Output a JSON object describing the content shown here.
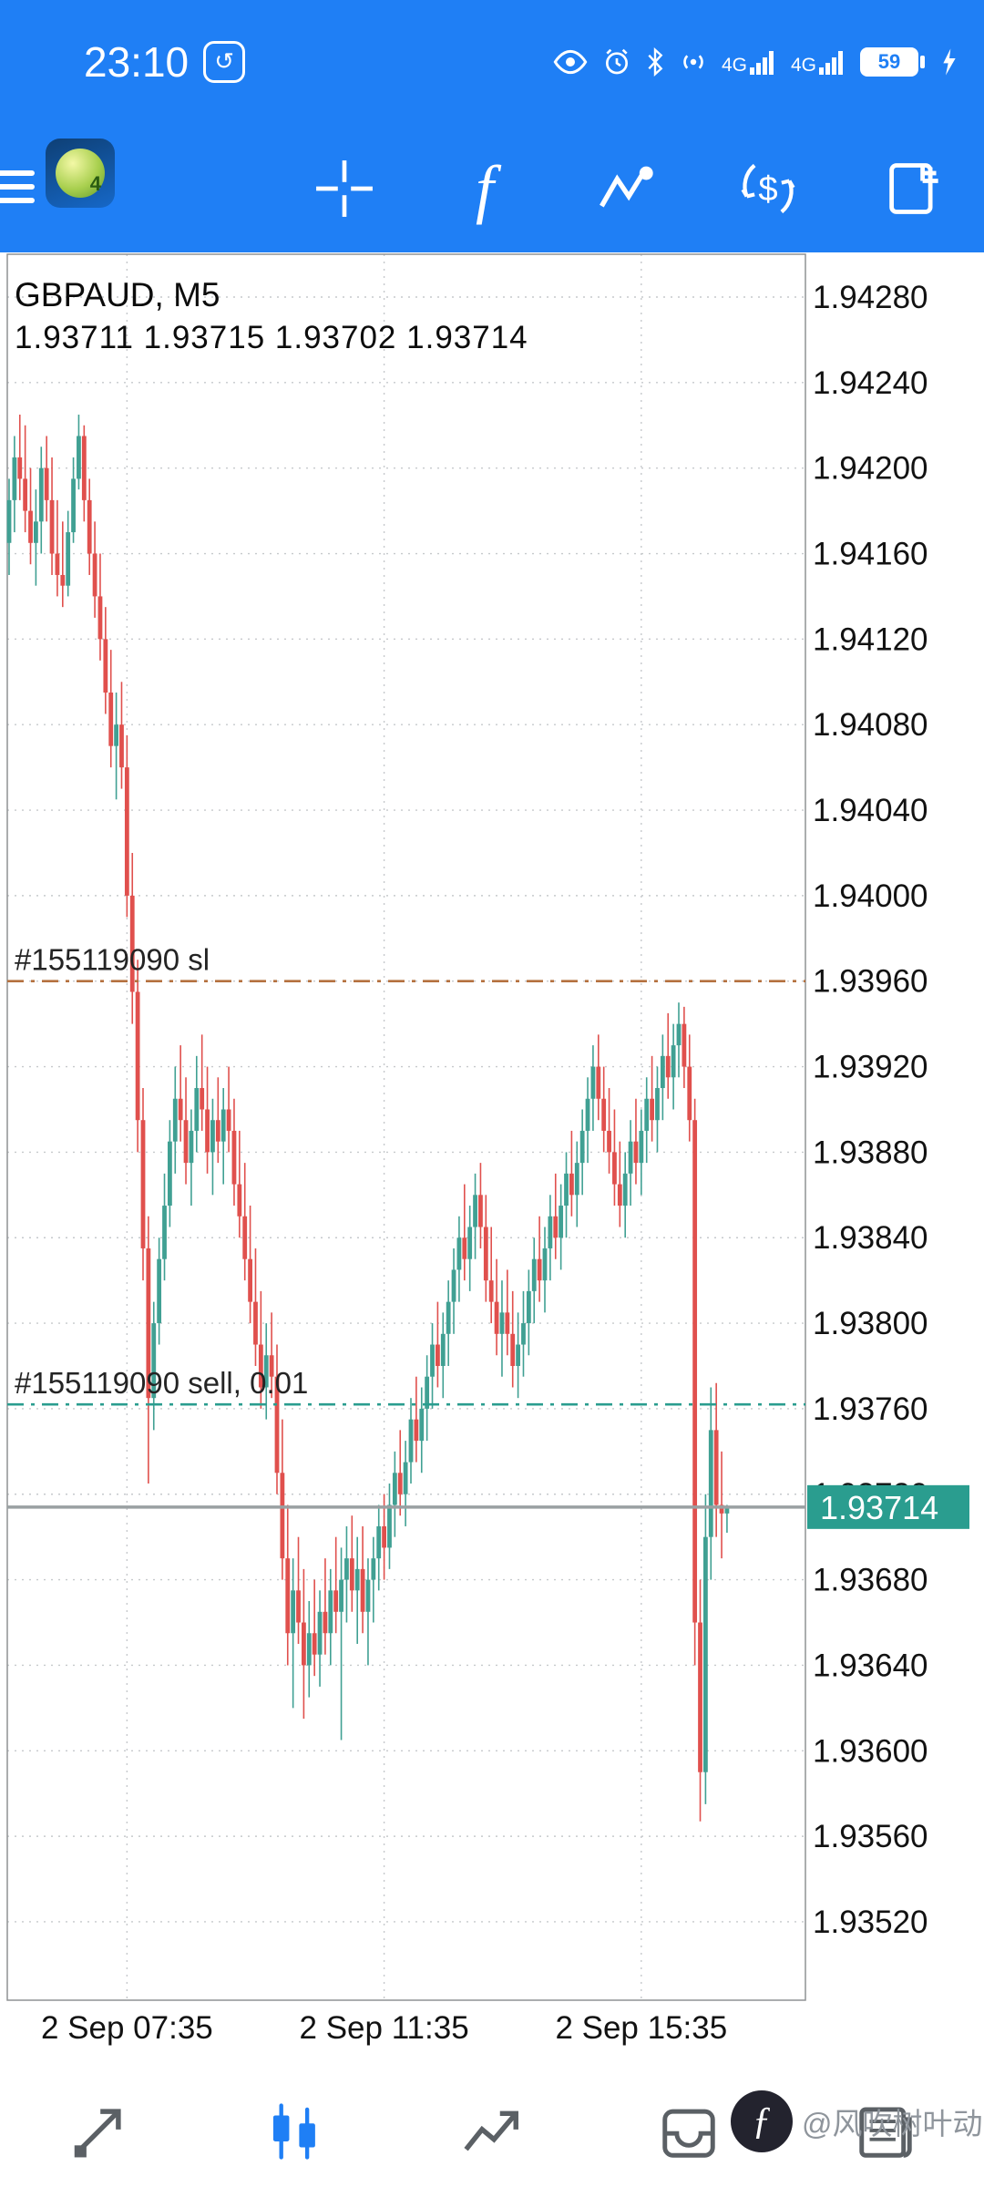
{
  "status_bar": {
    "time": "23:10",
    "battery_percent": "59",
    "sim1_network": "4G",
    "sim2_network": "4G"
  },
  "toolbar": {
    "icons": [
      "menu",
      "mt4-logo",
      "crosshair",
      "indicator-f",
      "objects",
      "trade-dollar",
      "new-order"
    ]
  },
  "chart": {
    "symbol_line": "GBPAUD, M5",
    "ohlc_line": "1.93711 1.93715 1.93702 1.93714",
    "orders": [
      {
        "label": "#155119090 sl",
        "price": 1.9396,
        "color": "#b5713f"
      },
      {
        "label": "#155119090 sell, 0.01",
        "price": 1.93762,
        "color": "#2a9d8f"
      }
    ]
  },
  "chart_data": {
    "type": "candlestick",
    "symbol": "GBPAUD",
    "timeframe": "M5",
    "title": "GBPAUD, M5",
    "y_max": 1.9428,
    "y_min": 1.9352,
    "y_step": 0.0004,
    "price_axis_labels": [
      "1.94280",
      "1.94240",
      "1.94200",
      "1.94160",
      "1.94120",
      "1.94080",
      "1.94040",
      "1.94000",
      "1.93960",
      "1.93920",
      "1.93880",
      "1.93840",
      "1.93800",
      "1.93760",
      "1.93720",
      "1.93680",
      "1.93640",
      "1.93600",
      "1.93560",
      "1.93520"
    ],
    "x_labels": [
      {
        "label": "2 Sep 07:35",
        "index": 22
      },
      {
        "label": "2 Sep 11:35",
        "index": 70
      },
      {
        "label": "2 Sep 15:35",
        "index": 118
      }
    ],
    "current_price": 1.93714,
    "current_price_label": "1.93714",
    "bull_color": "#40a093",
    "bear_color": "#e0504d",
    "candles": [
      [
        1.94165,
        1.94195,
        1.9415,
        1.94185
      ],
      [
        1.94185,
        1.94215,
        1.9417,
        1.94205
      ],
      [
        1.94205,
        1.94225,
        1.94185,
        1.94195
      ],
      [
        1.94195,
        1.9422,
        1.9417,
        1.9418
      ],
      [
        1.9418,
        1.942,
        1.94155,
        1.94165
      ],
      [
        1.94165,
        1.9419,
        1.94145,
        1.94175
      ],
      [
        1.94175,
        1.9421,
        1.9416,
        1.942
      ],
      [
        1.942,
        1.94215,
        1.94175,
        1.94185
      ],
      [
        1.94185,
        1.94205,
        1.9415,
        1.9416
      ],
      [
        1.9416,
        1.94185,
        1.9414,
        1.9415
      ],
      [
        1.9415,
        1.94175,
        1.94135,
        1.94145
      ],
      [
        1.94145,
        1.9418,
        1.9414,
        1.9417
      ],
      [
        1.9417,
        1.94205,
        1.94165,
        1.94195
      ],
      [
        1.94195,
        1.94225,
        1.9419,
        1.94215
      ],
      [
        1.94215,
        1.9422,
        1.94175,
        1.94185
      ],
      [
        1.94185,
        1.94195,
        1.9415,
        1.9416
      ],
      [
        1.9416,
        1.94175,
        1.9413,
        1.9414
      ],
      [
        1.9414,
        1.9416,
        1.9411,
        1.9412
      ],
      [
        1.9412,
        1.94135,
        1.94085,
        1.94095
      ],
      [
        1.94095,
        1.94115,
        1.9406,
        1.9407
      ],
      [
        1.9407,
        1.94095,
        1.94045,
        1.9408
      ],
      [
        1.9408,
        1.941,
        1.9405,
        1.9406
      ],
      [
        1.9406,
        1.94075,
        1.9399,
        1.94
      ],
      [
        1.94,
        1.9402,
        1.9394,
        1.93955
      ],
      [
        1.93955,
        1.9397,
        1.9388,
        1.93895
      ],
      [
        1.93895,
        1.9391,
        1.9382,
        1.93835
      ],
      [
        1.93835,
        1.9385,
        1.93725,
        1.93765
      ],
      [
        1.93765,
        1.9381,
        1.9375,
        1.938
      ],
      [
        1.938,
        1.9384,
        1.9379,
        1.9383
      ],
      [
        1.9383,
        1.9387,
        1.9382,
        1.93855
      ],
      [
        1.93855,
        1.93895,
        1.93845,
        1.93885
      ],
      [
        1.93885,
        1.9392,
        1.9387,
        1.93905
      ],
      [
        1.93905,
        1.9393,
        1.93885,
        1.93895
      ],
      [
        1.93895,
        1.93915,
        1.93865,
        1.93875
      ],
      [
        1.93875,
        1.939,
        1.93855,
        1.9389
      ],
      [
        1.9389,
        1.93925,
        1.9388,
        1.9391
      ],
      [
        1.9391,
        1.93935,
        1.9389,
        1.939
      ],
      [
        1.939,
        1.9392,
        1.9387,
        1.9388
      ],
      [
        1.9388,
        1.93905,
        1.9386,
        1.93895
      ],
      [
        1.93895,
        1.93915,
        1.93875,
        1.93885
      ],
      [
        1.93885,
        1.9391,
        1.93865,
        1.939
      ],
      [
        1.939,
        1.9392,
        1.9388,
        1.9389
      ],
      [
        1.9389,
        1.93905,
        1.93855,
        1.93865
      ],
      [
        1.93865,
        1.9389,
        1.9384,
        1.9385
      ],
      [
        1.9385,
        1.93875,
        1.9382,
        1.9383
      ],
      [
        1.9383,
        1.93855,
        1.938,
        1.9381
      ],
      [
        1.9381,
        1.93835,
        1.9378,
        1.9379
      ],
      [
        1.9379,
        1.93815,
        1.9376,
        1.9377
      ],
      [
        1.9377,
        1.938,
        1.93755,
        1.93785
      ],
      [
        1.93785,
        1.93805,
        1.93765,
        1.93775
      ],
      [
        1.93775,
        1.9379,
        1.9372,
        1.9373
      ],
      [
        1.9373,
        1.93755,
        1.9368,
        1.9369
      ],
      [
        1.9369,
        1.93715,
        1.9364,
        1.93655
      ],
      [
        1.93655,
        1.9369,
        1.9362,
        1.93675
      ],
      [
        1.93675,
        1.937,
        1.9365,
        1.9366
      ],
      [
        1.9366,
        1.93685,
        1.93615,
        1.9364
      ],
      [
        1.9364,
        1.9367,
        1.93625,
        1.93655
      ],
      [
        1.93655,
        1.9368,
        1.93635,
        1.93645
      ],
      [
        1.93645,
        1.93675,
        1.9363,
        1.93665
      ],
      [
        1.93665,
        1.9369,
        1.93645,
        1.93655
      ],
      [
        1.93655,
        1.93685,
        1.9364,
        1.93675
      ],
      [
        1.93675,
        1.937,
        1.93655,
        1.93665
      ],
      [
        1.93665,
        1.93695,
        1.93605,
        1.9368
      ],
      [
        1.9368,
        1.93705,
        1.9366,
        1.9369
      ],
      [
        1.9369,
        1.9371,
        1.93665,
        1.93675
      ],
      [
        1.93675,
        1.937,
        1.9365,
        1.93685
      ],
      [
        1.93685,
        1.93705,
        1.93655,
        1.93665
      ],
      [
        1.93665,
        1.9369,
        1.9364,
        1.9368
      ],
      [
        1.9368,
        1.937,
        1.9366,
        1.9369
      ],
      [
        1.9369,
        1.93715,
        1.93675,
        1.93705
      ],
      [
        1.93705,
        1.9372,
        1.9368,
        1.93695
      ],
      [
        1.93695,
        1.93725,
        1.93685,
        1.93715
      ],
      [
        1.93715,
        1.9374,
        1.937,
        1.9373
      ],
      [
        1.9373,
        1.9375,
        1.9371,
        1.9372
      ],
      [
        1.9372,
        1.93745,
        1.93705,
        1.93735
      ],
      [
        1.93735,
        1.93765,
        1.93725,
        1.93755
      ],
      [
        1.93755,
        1.93775,
        1.93735,
        1.93745
      ],
      [
        1.93745,
        1.9377,
        1.9373,
        1.9376
      ],
      [
        1.9376,
        1.93785,
        1.93745,
        1.93775
      ],
      [
        1.93775,
        1.938,
        1.9376,
        1.9379
      ],
      [
        1.9379,
        1.9381,
        1.9377,
        1.9378
      ],
      [
        1.9378,
        1.93805,
        1.93765,
        1.93795
      ],
      [
        1.93795,
        1.9382,
        1.9378,
        1.9381
      ],
      [
        1.9381,
        1.93835,
        1.93795,
        1.93825
      ],
      [
        1.93825,
        1.9385,
        1.9381,
        1.9384
      ],
      [
        1.9384,
        1.93865,
        1.9382,
        1.9383
      ],
      [
        1.9383,
        1.93855,
        1.93815,
        1.93845
      ],
      [
        1.93845,
        1.9387,
        1.9383,
        1.9386
      ],
      [
        1.9386,
        1.93875,
        1.93835,
        1.93845
      ],
      [
        1.93845,
        1.9386,
        1.9381,
        1.9382
      ],
      [
        1.9382,
        1.93845,
        1.938,
        1.9381
      ],
      [
        1.9381,
        1.9383,
        1.93785,
        1.93795
      ],
      [
        1.93795,
        1.9382,
        1.93775,
        1.93805
      ],
      [
        1.93805,
        1.93825,
        1.93785,
        1.93795
      ],
      [
        1.93795,
        1.93815,
        1.9377,
        1.9378
      ],
      [
        1.9378,
        1.93805,
        1.93765,
        1.9379
      ],
      [
        1.9379,
        1.93815,
        1.93775,
        1.938
      ],
      [
        1.938,
        1.93825,
        1.93785,
        1.93815
      ],
      [
        1.93815,
        1.9384,
        1.938,
        1.9383
      ],
      [
        1.9383,
        1.9385,
        1.9381,
        1.9382
      ],
      [
        1.9382,
        1.93845,
        1.93805,
        1.93835
      ],
      [
        1.93835,
        1.9386,
        1.9382,
        1.9385
      ],
      [
        1.9385,
        1.9387,
        1.9383,
        1.9384
      ],
      [
        1.9384,
        1.93865,
        1.93825,
        1.93855
      ],
      [
        1.93855,
        1.9388,
        1.9384,
        1.9387
      ],
      [
        1.9387,
        1.9389,
        1.9385,
        1.9386
      ],
      [
        1.9386,
        1.93885,
        1.93845,
        1.93875
      ],
      [
        1.93875,
        1.939,
        1.9386,
        1.9389
      ],
      [
        1.9389,
        1.93915,
        1.93875,
        1.93905
      ],
      [
        1.93905,
        1.9393,
        1.9389,
        1.9392
      ],
      [
        1.9392,
        1.93935,
        1.93895,
        1.93905
      ],
      [
        1.93905,
        1.9392,
        1.9388,
        1.9389
      ],
      [
        1.9389,
        1.9391,
        1.9387,
        1.9388
      ],
      [
        1.9388,
        1.939,
        1.93855,
        1.93865
      ],
      [
        1.93865,
        1.93885,
        1.93845,
        1.93855
      ],
      [
        1.93855,
        1.9388,
        1.9384,
        1.9387
      ],
      [
        1.9387,
        1.93895,
        1.93855,
        1.93885
      ],
      [
        1.93885,
        1.93905,
        1.93865,
        1.93875
      ],
      [
        1.93875,
        1.939,
        1.9386,
        1.9389
      ],
      [
        1.9389,
        1.93915,
        1.93875,
        1.93905
      ],
      [
        1.93905,
        1.93925,
        1.93885,
        1.93895
      ],
      [
        1.93895,
        1.9392,
        1.9388,
        1.9391
      ],
      [
        1.9391,
        1.93935,
        1.93895,
        1.93925
      ],
      [
        1.93925,
        1.93945,
        1.93905,
        1.93915
      ],
      [
        1.93915,
        1.9394,
        1.939,
        1.9393
      ],
      [
        1.9393,
        1.9395,
        1.93915,
        1.9394
      ],
      [
        1.9394,
        1.93948,
        1.9391,
        1.9392
      ],
      [
        1.9392,
        1.93935,
        1.93885,
        1.93895
      ],
      [
        1.93895,
        1.93905,
        1.9364,
        1.9366
      ],
      [
        1.9366,
        1.9368,
        1.93567,
        1.9359
      ],
      [
        1.9359,
        1.9372,
        1.93575,
        1.937
      ],
      [
        1.937,
        1.9377,
        1.9368,
        1.9375
      ],
      [
        1.9375,
        1.93772,
        1.937,
        1.93715
      ],
      [
        1.93715,
        1.9374,
        1.9369,
        1.93711
      ],
      [
        1.93711,
        1.93715,
        1.93702,
        1.93714
      ]
    ]
  },
  "bottom_nav": {
    "items": [
      "quotes",
      "charts",
      "trade",
      "history",
      "journal"
    ],
    "active": "charts"
  },
  "watermark": {
    "text": "@风吹树叶动"
  }
}
